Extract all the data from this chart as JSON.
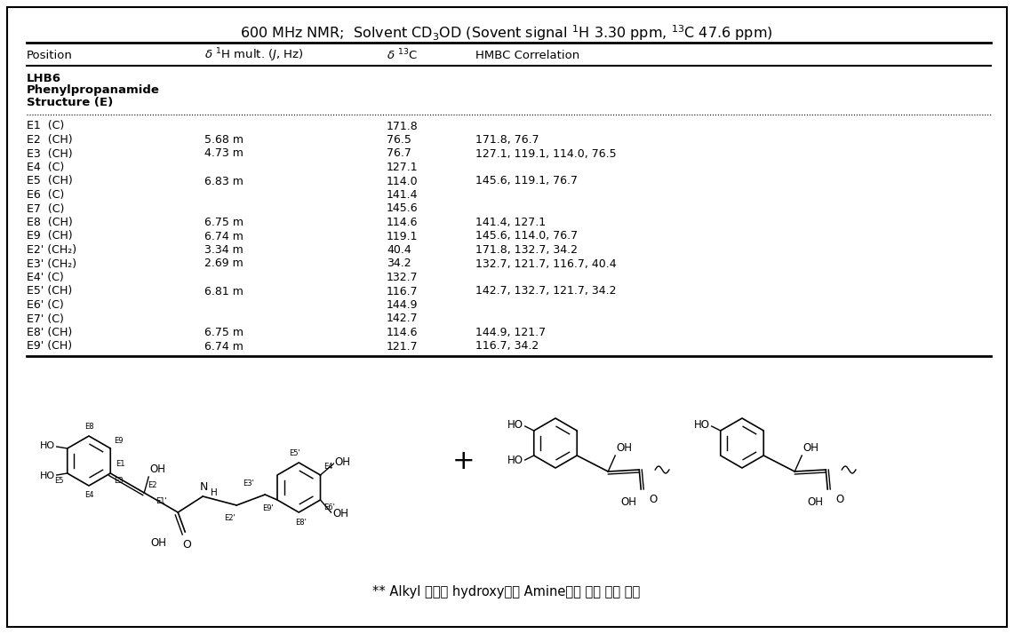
{
  "bg_color": "#ffffff",
  "header_row": [
    "Position",
    "δ ¹H mult. (J, Hz)",
    "δ ¹³C",
    "HMBC Correlation"
  ],
  "rows": [
    [
      "E1  (C)",
      "",
      "171.8",
      ""
    ],
    [
      "E2  (CH)",
      "5.68 m",
      "76.5",
      "171.8, 76.7"
    ],
    [
      "E3  (CH)",
      "4.73 m",
      "76.7",
      "127.1, 119.1, 114.0, 76.5"
    ],
    [
      "E4  (C)",
      "",
      "127.1",
      ""
    ],
    [
      "E5  (CH)",
      "6.83 m",
      "114.0",
      "145.6, 119.1, 76.7"
    ],
    [
      "E6  (C)",
      "",
      "141.4",
      ""
    ],
    [
      "E7  (C)",
      "",
      "145.6",
      ""
    ],
    [
      "E8  (CH)",
      "6.75 m",
      "114.6",
      "141.4, 127.1"
    ],
    [
      "E9  (CH)",
      "6.74 m",
      "119.1",
      "145.6, 114.0, 76.7"
    ],
    [
      "E2' (CH₂)",
      "3.34 m",
      "40.4",
      "171.8, 132.7, 34.2"
    ],
    [
      "E3' (CH₂)",
      "2.69 m",
      "34.2",
      "132.7, 121.7, 116.7, 40.4"
    ],
    [
      "E4' (C)",
      "",
      "132.7",
      ""
    ],
    [
      "E5' (CH)",
      "6.81 m",
      "116.7",
      "142.7, 132.7, 121.7, 34.2"
    ],
    [
      "E6' (C)",
      "",
      "144.9",
      ""
    ],
    [
      "E7' (C)",
      "",
      "142.7",
      ""
    ],
    [
      "E8' (CH)",
      "6.75 m",
      "114.6",
      "144.9, 121.7"
    ],
    [
      "E9' (CH)",
      "6.74 m",
      "121.7",
      "116.7, 34.2"
    ]
  ],
  "footnote": "** Alkyl 부분의 hydroxy기는 Amine기로 바꿼 수도 있음"
}
